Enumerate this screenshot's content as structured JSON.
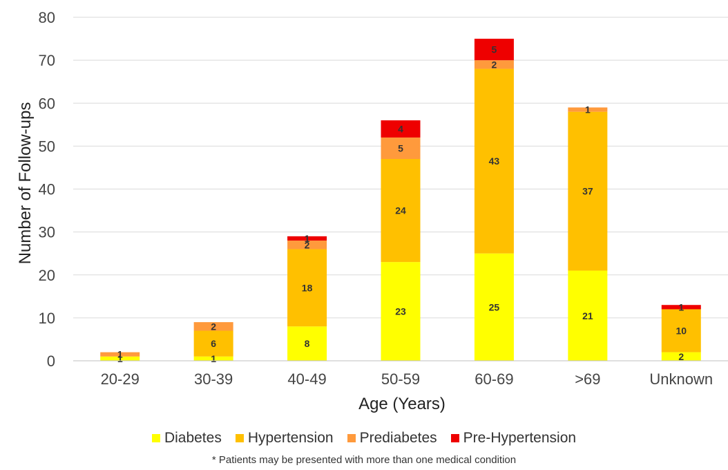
{
  "chart_data": {
    "type": "bar",
    "stacked": true,
    "categories": [
      "20-29",
      "30-39",
      "40-49",
      "50-59",
      "60-69",
      ">69",
      "Unknown"
    ],
    "series": [
      {
        "name": "Diabetes",
        "color": "#FFFF00",
        "values": [
          1,
          1,
          8,
          23,
          25,
          21,
          2
        ]
      },
      {
        "name": "Hypertension",
        "color": "#FFC000",
        "values": [
          0,
          6,
          18,
          24,
          43,
          37,
          10
        ]
      },
      {
        "name": "Prediabetes",
        "color": "#FF9A3C",
        "values": [
          1,
          2,
          2,
          5,
          2,
          1,
          0
        ]
      },
      {
        "name": "Pre-Hypertension",
        "color": "#EE0000",
        "values": [
          0,
          0,
          1,
          4,
          5,
          0,
          1
        ]
      }
    ],
    "xlabel": "Age (Years)",
    "ylabel": "Number of Follow-ups",
    "ylim": [
      0,
      80
    ],
    "yticks": [
      0,
      10,
      20,
      30,
      40,
      50,
      60,
      70,
      80
    ],
    "grid": true,
    "legend_position": "bottom",
    "footnote": "* Patients may be presented with more than one medical condition"
  }
}
